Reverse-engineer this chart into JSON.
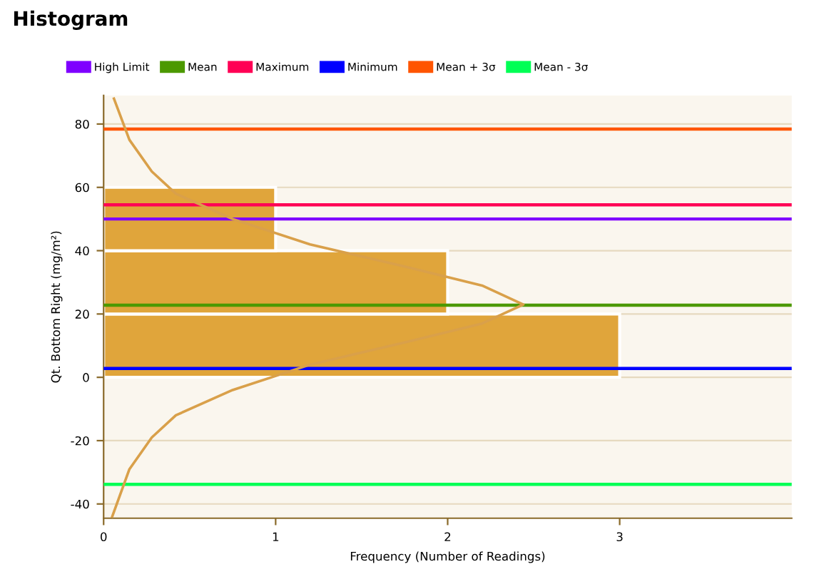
{
  "chart_data": {
    "type": "histogram",
    "title": "Histogram",
    "xlabel": "Frequency (Number of Readings)",
    "ylabel": "Qt. Bottom Right (mg/m²)",
    "orientation": "horizontal",
    "series": [
      {
        "bins": [
          0,
          20,
          40,
          60
        ],
        "values": [
          3,
          2,
          1
        ],
        "color": "#e0a53b"
      },
      {
        "type": "line",
        "color": "#d9a04a",
        "x": [
          88,
          75,
          65,
          58,
          50,
          42,
          35,
          29,
          23,
          17,
          11,
          4,
          -4,
          -12,
          -19,
          -29,
          -44
        ],
        "values": [
          0.06,
          0.15,
          0.28,
          0.42,
          0.75,
          1.2,
          1.75,
          2.2,
          2.44,
          2.2,
          1.75,
          1.2,
          0.75,
          0.42,
          0.28,
          0.15,
          0.05
        ]
      }
    ],
    "ref_lines": [
      {
        "axis": "y",
        "value": 50,
        "label": "High Limit",
        "color": "#7f00ff"
      },
      {
        "axis": "y",
        "value": 22.8,
        "label": "Mean",
        "color": "#4c9900"
      },
      {
        "axis": "y",
        "value": 54.5,
        "label": "Maximum",
        "color": "#ff0055"
      },
      {
        "axis": "y",
        "value": 2.8,
        "label": "Minimum",
        "color": "#0000ff"
      },
      {
        "axis": "y",
        "value": 78.4,
        "label": "Mean + 3σ",
        "color": "#ff5500"
      },
      {
        "axis": "y",
        "value": -33.8,
        "label": "Mean - 3σ",
        "color": "#00ff55"
      }
    ],
    "xlim": [
      0,
      4
    ],
    "xticks": [
      0,
      1,
      2,
      3
    ],
    "ylim": [
      -44.5,
      89
    ],
    "yticks": [
      -40,
      -20,
      0,
      20,
      40,
      60,
      80
    ],
    "grid": "y",
    "legend": "top"
  }
}
